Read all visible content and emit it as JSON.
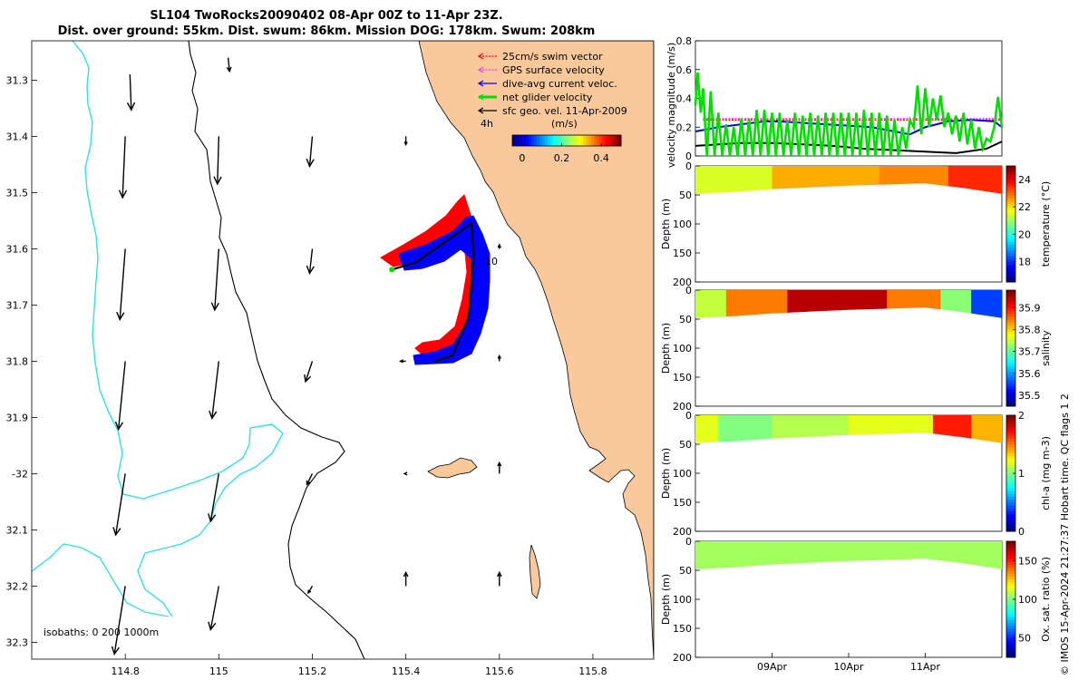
{
  "title_line1": "SL104 TwoRocks20090402 08-Apr 00Z to 11-Apr 23Z.",
  "title_line2": "Dist. over ground: 55km. Dist. swum: 86km. Mission DOG: 178km. Swum: 208km",
  "side_note": "© IMOS 15-Apr-2024 21:27:37 Hobart time. QC flags 1  2",
  "colors": {
    "land": "#f9c99b",
    "isobath_0": "#000000",
    "isobath_200": "#000000",
    "isobath_1000": "#33e0e0",
    "swim": "#ff0000",
    "gps": "#ff33ff",
    "current": "#0000ff",
    "net": "#00e000",
    "geo": "#000000"
  },
  "chart_data": [
    {
      "type": "map",
      "xlim": [
        114.6,
        115.93
      ],
      "ylim": [
        -32.33,
        -31.23
      ],
      "x_ticks": [
        114.8,
        115,
        115.2,
        115.4,
        115.6,
        115.8
      ],
      "x_tick_labels": [
        "114.8",
        "115",
        "115.2",
        "115.4",
        "115.6",
        "115.8"
      ],
      "y_ticks": [
        -31.3,
        -31.4,
        -31.5,
        -31.6,
        -31.7,
        -31.8,
        -31.9,
        -32,
        -32.1,
        -32.2,
        -32.3
      ],
      "y_tick_labels": [
        "31.3",
        "31.4",
        "31.5",
        "31.6",
        "31.7",
        "31.8",
        "31.9",
        "-32",
        "32.1",
        "32.2",
        "32.3"
      ],
      "isobath_label": "isobaths: 0   200  1000m",
      "track_label": "10",
      "legend": [
        {
          "label": "25cm/s swim vector",
          "color": "#ff0000",
          "style": "dotted"
        },
        {
          "label": "GPS surface velocity",
          "color": "#ff33ff",
          "style": "dotted"
        },
        {
          "label": "dive-avg current veloc.",
          "color": "#0000ff",
          "style": "solid"
        },
        {
          "label": "net glider velocity",
          "color": "#00e000",
          "style": "thick"
        },
        {
          "label": "sfc geo. vel. 11-Apr-2009",
          "color": "#000000",
          "style": "solid"
        }
      ],
      "colorbar": {
        "label": "(m/s)",
        "scale_label": "4h",
        "ticks": [
          0,
          0.2,
          0.4
        ],
        "tick_labels": [
          "0",
          "0.2",
          "0.4"
        ],
        "range": [
          -0.05,
          0.5
        ]
      },
      "geo_vectors": [
        {
          "lon": 114.81,
          "lat": -31.29,
          "u": 0.01,
          "v": -0.26
        },
        {
          "lon": 115.02,
          "lat": -31.26,
          "u": 0.01,
          "v": -0.1
        },
        {
          "lon": 114.8,
          "lat": -31.4,
          "u": -0.02,
          "v": -0.45
        },
        {
          "lon": 115,
          "lat": -31.4,
          "u": -0.01,
          "v": -0.35
        },
        {
          "lon": 115.2,
          "lat": -31.4,
          "u": -0.02,
          "v": -0.22
        },
        {
          "lon": 115.4,
          "lat": -31.4,
          "u": 0,
          "v": -0.06
        },
        {
          "lon": 114.8,
          "lat": -31.6,
          "u": -0.04,
          "v": -0.52
        },
        {
          "lon": 115,
          "lat": -31.6,
          "u": -0.03,
          "v": -0.45
        },
        {
          "lon": 115.2,
          "lat": -31.6,
          "u": -0.02,
          "v": -0.18
        },
        {
          "lon": 114.8,
          "lat": -31.8,
          "u": -0.05,
          "v": -0.5
        },
        {
          "lon": 115,
          "lat": -31.8,
          "u": -0.05,
          "v": -0.42
        },
        {
          "lon": 115.2,
          "lat": -31.8,
          "u": -0.05,
          "v": -0.15
        },
        {
          "lon": 115.4,
          "lat": -31.8,
          "u": -0.04,
          "v": 0
        },
        {
          "lon": 115.6,
          "lat": -31.8,
          "u": 0,
          "v": 0.04
        },
        {
          "lon": 115.6,
          "lat": -31.6,
          "u": 0,
          "v": 0.03
        },
        {
          "lon": 114.8,
          "lat": -32,
          "u": -0.07,
          "v": -0.45
        },
        {
          "lon": 115,
          "lat": -32,
          "u": -0.06,
          "v": -0.35
        },
        {
          "lon": 115.2,
          "lat": -32,
          "u": -0.04,
          "v": -0.08
        },
        {
          "lon": 115.4,
          "lat": -32,
          "u": -0.01,
          "v": 0
        },
        {
          "lon": 115.6,
          "lat": -32,
          "u": 0,
          "v": 0.08
        },
        {
          "lon": 114.8,
          "lat": -32.2,
          "u": -0.08,
          "v": -0.5
        },
        {
          "lon": 115,
          "lat": -32.2,
          "u": -0.06,
          "v": -0.32
        },
        {
          "lon": 115.2,
          "lat": -32.2,
          "u": -0.03,
          "v": -0.05
        },
        {
          "lon": 115.4,
          "lat": -32.2,
          "u": 0,
          "v": 0.1
        },
        {
          "lon": 115.6,
          "lat": -32.2,
          "u": 0,
          "v": 0.1
        }
      ],
      "glider_track": [
        {
          "lon": 115.37,
          "lat": -31.637
        },
        {
          "lon": 115.42,
          "lat": -31.625
        },
        {
          "lon": 115.54,
          "lat": -31.555
        },
        {
          "lon": 115.545,
          "lat": -31.61
        },
        {
          "lon": 115.535,
          "lat": -31.72
        },
        {
          "lon": 115.5,
          "lat": -31.79
        },
        {
          "lon": 115.46,
          "lat": -31.8
        }
      ]
    },
    {
      "type": "line",
      "ylabel": "velocity magnitude (m/s)",
      "ylim": [
        0,
        0.8
      ],
      "y_ticks": [
        0,
        0.2,
        0.4,
        0.6,
        0.8
      ],
      "y_tick_labels": [
        "0",
        "0.2",
        "0.4",
        "0.6",
        "0.8"
      ],
      "x_range_days": [
        8,
        12
      ],
      "series": [
        {
          "color": "#ff0000",
          "style": "dotted",
          "x": [
            8.1,
            12
          ],
          "y": [
            0.25,
            0.25
          ]
        },
        {
          "color": "#ff33ff",
          "style": "dotted",
          "x": [
            8.1,
            12
          ],
          "y": [
            0.26,
            0.26
          ]
        },
        {
          "color": "#0000ff",
          "style": "solid",
          "x": [
            8,
            8.3,
            8.6,
            8.9,
            9.1,
            9.4,
            9.7,
            10,
            10.3,
            10.6,
            10.8,
            11,
            11.3,
            11.6,
            11.9,
            12
          ],
          "y": [
            0.17,
            0.2,
            0.22,
            0.24,
            0.24,
            0.23,
            0.22,
            0.21,
            0.2,
            0.17,
            0.15,
            0.2,
            0.24,
            0.25,
            0.24,
            0.2
          ]
        },
        {
          "color": "#000000",
          "style": "solid",
          "x": [
            8,
            8.3,
            8.6,
            9,
            9.4,
            9.8,
            10.2,
            10.6,
            11,
            11.4,
            11.8,
            12
          ],
          "y": [
            0.07,
            0.08,
            0.09,
            0.09,
            0.08,
            0.07,
            0.05,
            0.04,
            0.03,
            0.02,
            0.05,
            0.1
          ]
        },
        {
          "color": "#00e000",
          "style": "thick",
          "x": [
            8,
            8.03,
            8.07,
            8.1,
            8.15,
            8.2,
            8.25,
            8.3,
            8.35,
            8.4,
            8.45,
            8.5,
            8.55,
            8.6,
            8.65,
            8.7,
            8.75,
            8.8,
            8.85,
            8.9,
            8.95,
            9,
            9.05,
            9.1,
            9.15,
            9.2,
            9.25,
            9.3,
            9.35,
            9.4,
            9.45,
            9.5,
            9.55,
            9.6,
            9.65,
            9.7,
            9.75,
            9.8,
            9.85,
            9.9,
            9.95,
            10,
            10.05,
            10.1,
            10.15,
            10.2,
            10.25,
            10.3,
            10.35,
            10.4,
            10.45,
            10.5,
            10.55,
            10.6,
            10.65,
            10.7,
            10.75,
            10.8,
            10.85,
            10.9,
            10.95,
            11,
            11.05,
            11.1,
            11.15,
            11.2,
            11.25,
            11.3,
            11.35,
            11.4,
            11.45,
            11.5,
            11.55,
            11.6,
            11.65,
            11.7,
            11.75,
            11.8,
            11.85,
            11.9,
            11.95,
            12
          ],
          "y": [
            0.35,
            0.58,
            0.3,
            0.47,
            0,
            0.45,
            0,
            0.3,
            0,
            0.22,
            0,
            0.2,
            0,
            0.26,
            0,
            0.26,
            0,
            0.32,
            0,
            0.32,
            0,
            0.3,
            0,
            0.3,
            0,
            0.25,
            0,
            0.3,
            0,
            0.28,
            0,
            0.3,
            0,
            0.28,
            0,
            0.3,
            0,
            0.3,
            0,
            0.3,
            0,
            0.3,
            0,
            0.3,
            0,
            0.32,
            0,
            0.3,
            0,
            0.3,
            0,
            0.28,
            0,
            0.25,
            0,
            0.2,
            0.05,
            0.25,
            0.2,
            0.49,
            0.15,
            0.47,
            0.2,
            0.4,
            0.25,
            0.42,
            0.2,
            0.3,
            0.15,
            0.28,
            0.1,
            0.3,
            0.08,
            0.25,
            0.05,
            0.2,
            0.05,
            0.12,
            0.1,
            0.2,
            0.41,
            0.2
          ]
        }
      ]
    },
    {
      "type": "heatmap",
      "variable": "temperature",
      "colorbar_label": "temperature (°C)",
      "ylabel": "Depth (m)",
      "ylim": [
        200,
        0
      ],
      "y_tick_labels": [
        "0",
        "50",
        "100",
        "150",
        "200"
      ],
      "colorbar_ticks": [
        18,
        20,
        22,
        24
      ],
      "colorbar_tick_labels": [
        "18",
        "20",
        "22",
        "24"
      ],
      "colorbar_range": [
        16.5,
        25
      ],
      "depth_bottom": {
        "x": [
          8,
          8.5,
          9,
          9.5,
          10,
          10.5,
          11,
          11.5,
          12
        ],
        "y": [
          48,
          45,
          40,
          37,
          34,
          32,
          30,
          38,
          48
        ]
      },
      "bands": [
        {
          "x0": 8,
          "x1": 9,
          "value": 21.5
        },
        {
          "x0": 9,
          "x1": 10.4,
          "value": 22.5
        },
        {
          "x0": 10.4,
          "x1": 11.3,
          "value": 22.8
        },
        {
          "x0": 11.3,
          "x1": 12,
          "value": 23.6
        }
      ]
    },
    {
      "type": "heatmap",
      "variable": "salinity",
      "colorbar_label": "salinity",
      "ylabel": "Depth (m)",
      "ylim": [
        200,
        0
      ],
      "y_tick_labels": [
        "0",
        "50",
        "100",
        "150",
        "200"
      ],
      "colorbar_ticks": [
        35.5,
        35.6,
        35.7,
        35.8,
        35.9
      ],
      "colorbar_tick_labels": [
        "35.5",
        "35.6",
        "35.7",
        "35.8",
        "35.9"
      ],
      "colorbar_range": [
        35.45,
        35.98
      ],
      "depth_bottom": {
        "x": [
          8,
          8.5,
          9,
          9.5,
          10,
          10.5,
          11,
          11.5,
          12
        ],
        "y": [
          48,
          45,
          40,
          37,
          34,
          32,
          30,
          38,
          48
        ]
      },
      "bands": [
        {
          "x0": 8,
          "x1": 8.4,
          "value": 35.75
        },
        {
          "x0": 8.4,
          "x1": 9.2,
          "value": 35.85
        },
        {
          "x0": 9.2,
          "x1": 10.5,
          "value": 35.95
        },
        {
          "x0": 10.5,
          "x1": 11.2,
          "value": 35.85
        },
        {
          "x0": 11.2,
          "x1": 11.6,
          "value": 35.72
        },
        {
          "x0": 11.6,
          "x1": 12,
          "value": 35.55
        }
      ]
    },
    {
      "type": "heatmap",
      "variable": "chl-a",
      "colorbar_label": "chl-a (mg m-3)",
      "ylabel": "Depth (m)",
      "ylim": [
        200,
        0
      ],
      "y_tick_labels": [
        "0",
        "50",
        "100",
        "150",
        "200"
      ],
      "colorbar_ticks": [
        0,
        1,
        2
      ],
      "colorbar_tick_labels": [
        "0",
        "1",
        "2"
      ],
      "colorbar_range": [
        0,
        2
      ],
      "depth_bottom": {
        "x": [
          8,
          8.5,
          9,
          9.5,
          10,
          10.5,
          11,
          11.5,
          12
        ],
        "y": [
          48,
          45,
          40,
          37,
          34,
          32,
          30,
          38,
          48
        ]
      },
      "bands": [
        {
          "x0": 8,
          "x1": 8.3,
          "value": 1.2
        },
        {
          "x0": 8.3,
          "x1": 9,
          "value": 1.0
        },
        {
          "x0": 9,
          "x1": 10,
          "value": 1.1
        },
        {
          "x0": 10,
          "x1": 11.1,
          "value": 1.2
        },
        {
          "x0": 11.1,
          "x1": 11.6,
          "value": 1.7
        },
        {
          "x0": 11.6,
          "x1": 12,
          "value": 1.4
        }
      ]
    },
    {
      "type": "heatmap",
      "variable": "oxygen",
      "colorbar_label": "Ox. sat. ratio (%)",
      "ylabel": "Depth (m)",
      "ylim": [
        200,
        0
      ],
      "y_tick_labels": [
        "0",
        "50",
        "100",
        "150",
        "200"
      ],
      "colorbar_ticks": [
        50,
        100,
        150
      ],
      "colorbar_tick_labels": [
        "50",
        "100",
        "150"
      ],
      "colorbar_range": [
        25,
        175
      ],
      "depth_bottom": {
        "x": [
          8,
          8.5,
          9,
          9.5,
          10,
          10.5,
          11,
          11.5,
          12
        ],
        "y": [
          48,
          45,
          40,
          37,
          34,
          32,
          30,
          38,
          48
        ]
      },
      "bands": [
        {
          "x0": 8,
          "x1": 12,
          "value": 105
        }
      ],
      "x_ticks": [
        9,
        10,
        11
      ],
      "x_tick_labels": [
        "09Apr",
        "10Apr",
        "11Apr"
      ]
    }
  ]
}
